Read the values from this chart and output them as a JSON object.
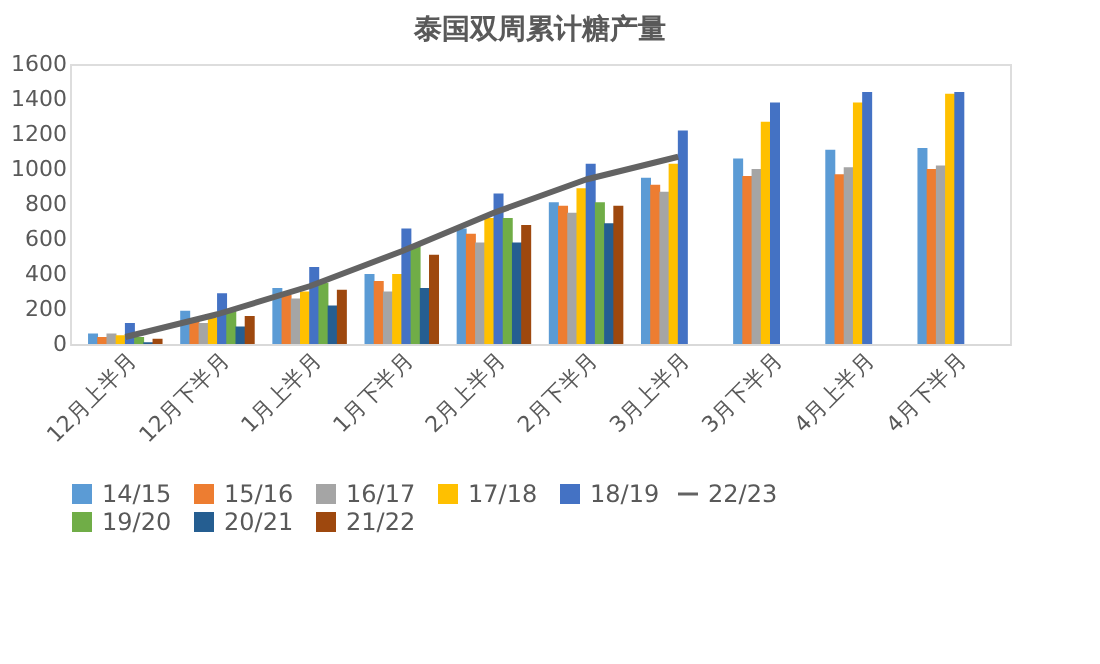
{
  "chart_data": {
    "type": "bar",
    "title": "泰国双周累计糖产量",
    "categories": [
      "12月上半月",
      "12月下半月",
      "1月上半月",
      "1月下半月",
      "2月上半月",
      "2月下半月",
      "3月上半月",
      "3月下半月",
      "4月上半月",
      "4月下半月"
    ],
    "series": [
      {
        "name": "14/15",
        "color": "#5b9bd5",
        "values": [
          60,
          190,
          320,
          400,
          660,
          810,
          950,
          1060,
          1110,
          1120
        ]
      },
      {
        "name": "15/16",
        "color": "#ed7d31",
        "values": [
          40,
          130,
          280,
          360,
          630,
          790,
          910,
          960,
          970,
          1000
        ]
      },
      {
        "name": "16/17",
        "color": "#a5a5a5",
        "values": [
          60,
          120,
          260,
          300,
          580,
          750,
          870,
          1000,
          1010,
          1020
        ]
      },
      {
        "name": "17/18",
        "color": "#ffc000",
        "values": [
          50,
          150,
          300,
          400,
          720,
          890,
          1030,
          1270,
          1380,
          1430
        ]
      },
      {
        "name": "18/19",
        "color": "#4472c4",
        "values": [
          120,
          290,
          440,
          660,
          860,
          1030,
          1220,
          1380,
          1440,
          1440
        ]
      },
      {
        "name": "19/20",
        "color": "#70ad47",
        "values": [
          40,
          190,
          350,
          570,
          720,
          810,
          null,
          null,
          null,
          null
        ]
      },
      {
        "name": "20/21",
        "color": "#255e91",
        "values": [
          10,
          100,
          220,
          320,
          580,
          690,
          null,
          null,
          null,
          null
        ]
      },
      {
        "name": "21/22",
        "color": "#9e480e",
        "values": [
          30,
          160,
          310,
          510,
          680,
          790,
          null,
          null,
          null,
          null
        ]
      },
      {
        "name": "22/23",
        "color": "#636363",
        "type": "line",
        "values": [
          40,
          170,
          330,
          530,
          750,
          940,
          1070,
          null,
          null,
          null
        ]
      }
    ],
    "ylim": [
      0,
      1600
    ],
    "yticks": [
      0,
      200,
      400,
      600,
      800,
      1000,
      1200,
      1400,
      1600
    ],
    "grid": false,
    "legend": "bottom"
  }
}
